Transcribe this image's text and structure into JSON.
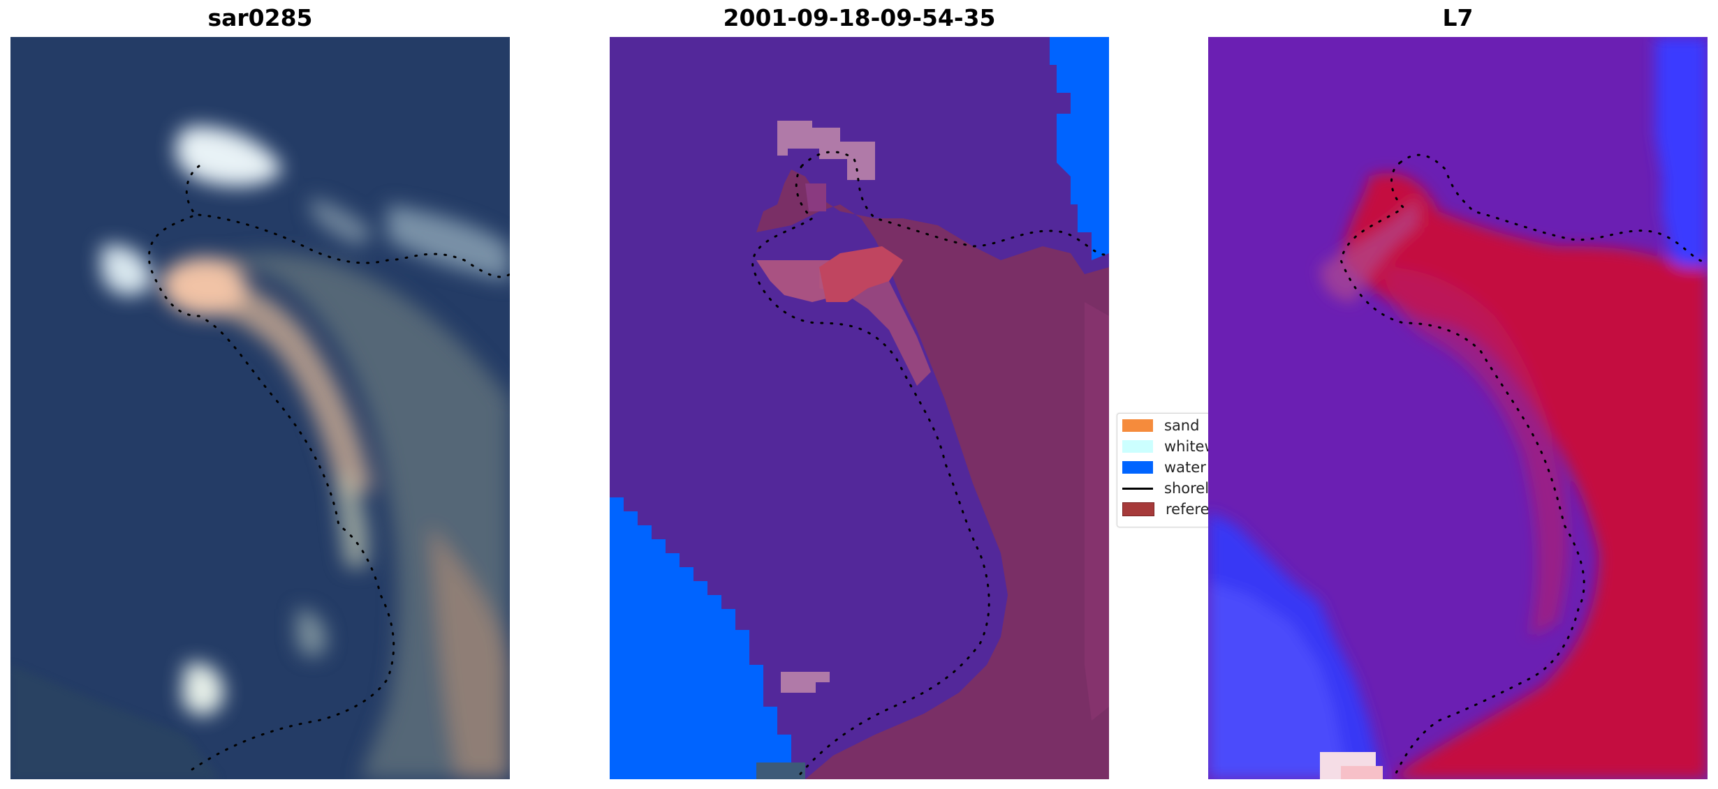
{
  "panels": [
    {
      "title": "sar0285",
      "image": "true-color satellite image of coastline with dotted shoreline"
    },
    {
      "title": "2001-09-18-09-54-35",
      "image": "classified image (sand, whitewater, water) with reference overlay and dotted shoreline"
    },
    {
      "title": "L7",
      "image": "water index image, red land and blue water with dotted shoreline"
    }
  ],
  "legend": {
    "items": [
      {
        "label": "sand",
        "color": "#f58b3c",
        "kind": "swatch"
      },
      {
        "label": "whitewater",
        "color": "#ccffff",
        "kind": "swatch"
      },
      {
        "label": "water",
        "color": "#0064ff",
        "kind": "swatch"
      },
      {
        "label": "shoreline",
        "color": "#000000",
        "kind": "line"
      },
      {
        "label": "reference",
        "color": "#a63a3a",
        "kind": "swatch"
      }
    ]
  },
  "colors": {
    "rgb_water": "#223b66",
    "class_background": "#53289a",
    "class_water": "#0064ff",
    "index_land": "#c41040",
    "index_water": "#3030ff"
  }
}
